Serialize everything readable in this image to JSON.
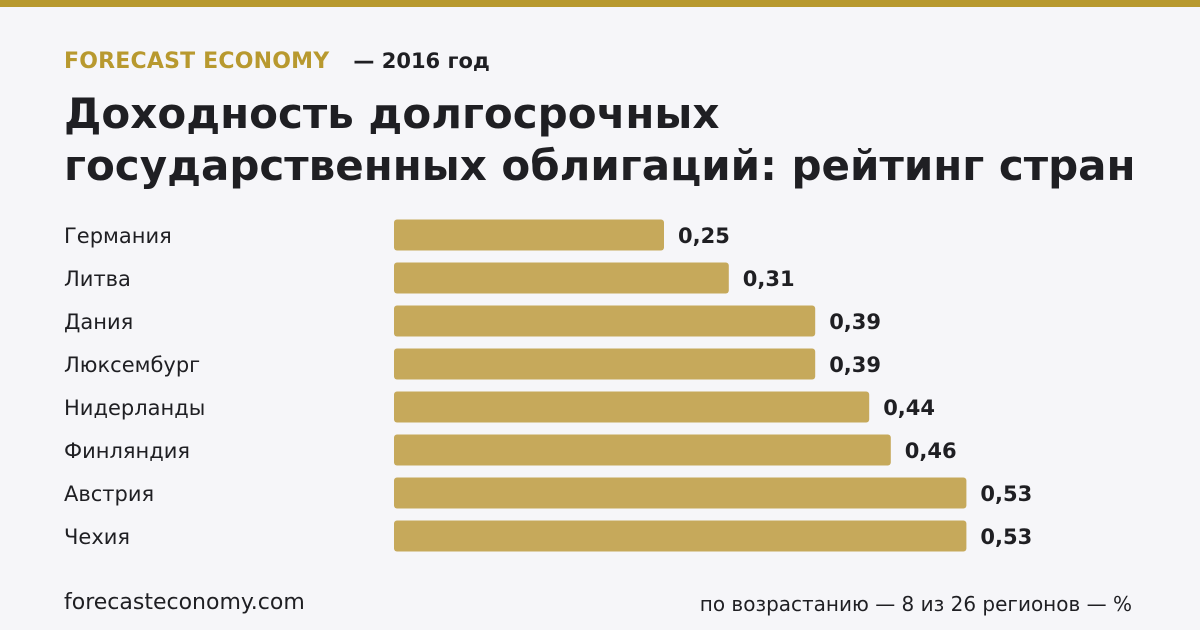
{
  "header": {
    "brand": "FORECAST ECONOMY",
    "year_label": "— 2016 год"
  },
  "title": "Доходность долгосрочных государственных облигаций: рейтинг стран",
  "footer": {
    "site": "forecasteconomy.com",
    "note": "по возрастанию — 8 из 26 регионов — %"
  },
  "colors": {
    "accent": "#b8992f",
    "bar": "#c6a95b",
    "background": "#f6f6f9",
    "text": "#1f1f23"
  },
  "chart_data": {
    "type": "bar",
    "orientation": "horizontal",
    "categories": [
      "Германия",
      "Литва",
      "Дания",
      "Люксембург",
      "Нидерланды",
      "Финляндия",
      "Австрия",
      "Чехия"
    ],
    "values": [
      0.25,
      0.31,
      0.39,
      0.39,
      0.44,
      0.46,
      0.53,
      0.53
    ],
    "value_labels": [
      "0,25",
      "0,31",
      "0,39",
      "0,39",
      "0,44",
      "0,46",
      "0,53",
      "0,53"
    ],
    "unit": "%",
    "grid": false
  }
}
